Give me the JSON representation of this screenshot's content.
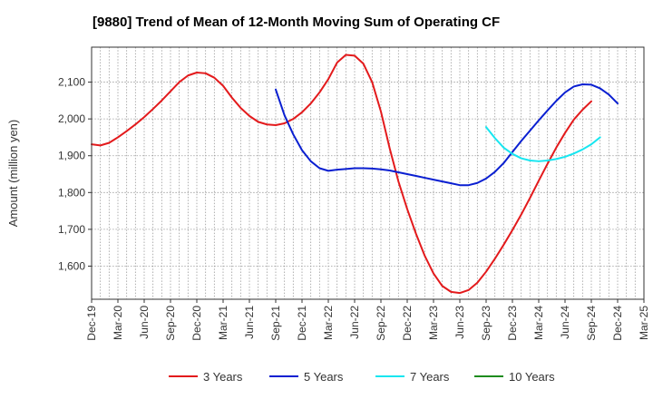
{
  "chart_data": {
    "type": "line",
    "title": "[9880]  Trend of Mean of 12-Month Moving Sum of Operating CF",
    "xlabel": "",
    "ylabel": "Amount (million yen)",
    "ylim": [
      1510,
      2195
    ],
    "yticks": [
      1600,
      1700,
      1800,
      1900,
      2000,
      2100
    ],
    "ytick_labels": [
      "1,600",
      "1,700",
      "1,800",
      "1,900",
      "2,000",
      "2,100"
    ],
    "x_start": "2019-12",
    "x_months_total": 63,
    "xtick_labels": [
      "Dec-19",
      "Mar-20",
      "Jun-20",
      "Sep-20",
      "Dec-20",
      "Mar-21",
      "Jun-21",
      "Sep-21",
      "Dec-21",
      "Mar-22",
      "Jun-22",
      "Sep-22",
      "Dec-22",
      "Mar-23",
      "Jun-23",
      "Sep-23",
      "Dec-23",
      "Mar-24",
      "Jun-24",
      "Sep-24",
      "Dec-24",
      "Mar-25"
    ],
    "grid": true,
    "legend_position": "bottom",
    "series": [
      {
        "name": "3 Years",
        "color": "#e31a1c",
        "start_month": 0,
        "values": [
          1931,
          1928,
          1935,
          1950,
          1967,
          1985,
          2005,
          2027,
          2050,
          2075,
          2100,
          2118,
          2126,
          2124,
          2112,
          2090,
          2058,
          2030,
          2008,
          1992,
          1985,
          1983,
          1988,
          2000,
          2018,
          2042,
          2072,
          2108,
          2153,
          2174,
          2172,
          2150,
          2100,
          2020,
          1920,
          1830,
          1755,
          1688,
          1628,
          1580,
          1546,
          1530,
          1527,
          1535,
          1555,
          1585,
          1620,
          1658,
          1698,
          1740,
          1785,
          1832,
          1878,
          1922,
          1962,
          1998,
          2025,
          2048
        ]
      },
      {
        "name": "5 Years",
        "color": "#0a1fd1",
        "start_month": 21,
        "values": [
          2080,
          2010,
          1958,
          1915,
          1885,
          1866,
          1859,
          1862,
          1864,
          1866,
          1866,
          1865,
          1863,
          1860,
          1855,
          1850,
          1845,
          1840,
          1835,
          1830,
          1825,
          1820,
          1820,
          1826,
          1838,
          1856,
          1880,
          1910,
          1940,
          1968,
          1996,
          2023,
          2049,
          2072,
          2088,
          2094,
          2093,
          2083,
          2066,
          2042
        ]
      },
      {
        "name": "7 Years",
        "color": "#17e6f0",
        "start_month": 45,
        "values": [
          1978,
          1948,
          1922,
          1905,
          1893,
          1887,
          1885,
          1887,
          1891,
          1897,
          1906,
          1917,
          1931,
          1950
        ]
      },
      {
        "name": "10 Years",
        "color": "#1e8c1e",
        "start_month": 0,
        "values": []
      }
    ]
  }
}
